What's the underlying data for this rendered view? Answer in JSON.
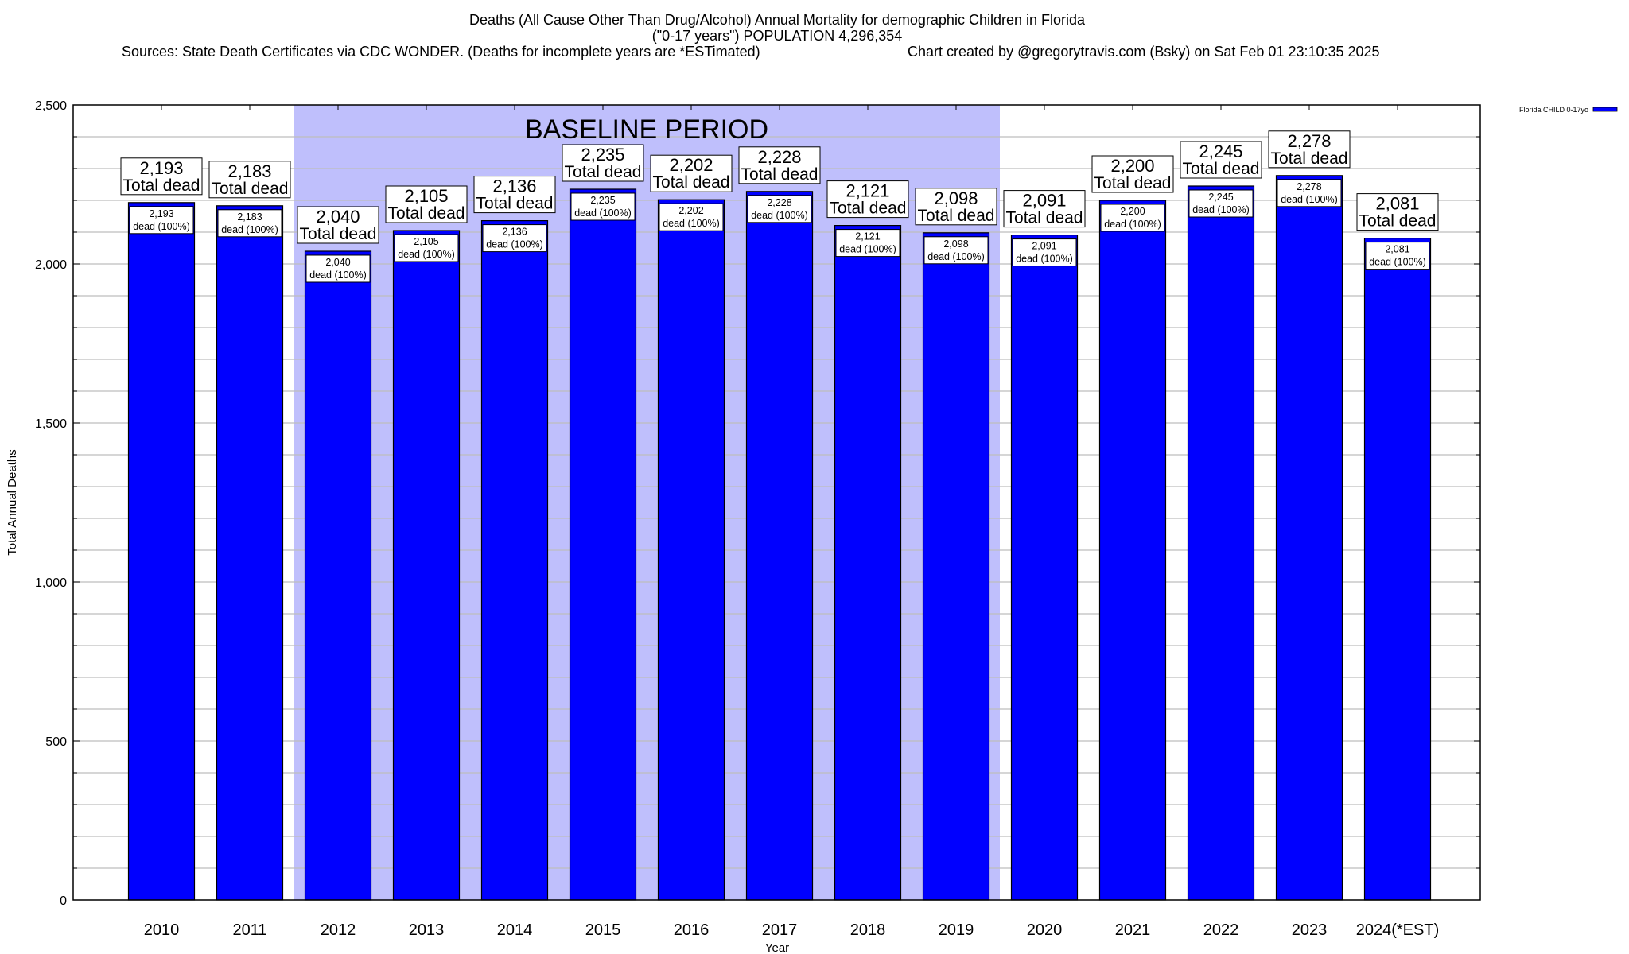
{
  "chart_data": {
    "type": "bar",
    "title": "Deaths (All Cause Other Than Drug/Alcohol) Annual Mortality for demographic Children in Florida",
    "subtitle": "(\"0-17 years\") POPULATION 4,296,354",
    "sources": "Sources: State Death Certificates via CDC WONDER. (Deaths for incomplete years are *ESTimated)",
    "credit": "Chart created by @gregorytravis.com (Bsky) on Sat Feb 01 23:10:35 2025",
    "xlabel": "Year",
    "ylabel": "Total Annual Deaths",
    "ylim": [
      0,
      2500
    ],
    "yticks": [
      0,
      500,
      1000,
      1500,
      2000,
      2500
    ],
    "ytick_labels": [
      "0",
      "500",
      "1,000",
      "1,500",
      "2,000",
      "2,500"
    ],
    "minor_grid_step": 100,
    "grid": true,
    "categories": [
      "2010",
      "2011",
      "2012",
      "2013",
      "2014",
      "2015",
      "2016",
      "2017",
      "2018",
      "2019",
      "2020",
      "2021",
      "2022",
      "2023",
      "2024(*EST)"
    ],
    "series": [
      {
        "name": "Florida CHILD 0-17yo",
        "color": "#0000ff",
        "values": [
          2193,
          2183,
          2040,
          2105,
          2136,
          2235,
          2202,
          2228,
          2121,
          2098,
          2091,
          2200,
          2245,
          2278,
          2081
        ]
      }
    ],
    "top_label_suffix": "Total dead",
    "inner_label_suffix": "dead (100%)",
    "annotation": {
      "text": "BASELINE PERIOD",
      "start_category": "2012",
      "end_category": "2019",
      "color": "#bfbffc"
    },
    "legend": {
      "placement": "top-right",
      "entries": [
        "Florida CHILD 0-17yo"
      ]
    }
  }
}
